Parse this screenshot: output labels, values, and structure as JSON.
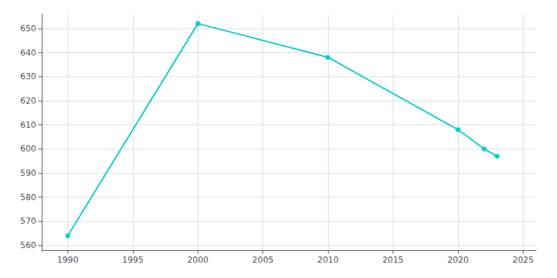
{
  "chart_data": {
    "type": "line",
    "x": [
      1990,
      2000,
      2010,
      2020,
      2022,
      2023
    ],
    "values": [
      564,
      652,
      638,
      608,
      600,
      597
    ],
    "color": "#00CED1",
    "marker": "circle",
    "xlim": [
      1988,
      2026
    ],
    "ylim": [
      558,
      656
    ],
    "xticks": [
      1990,
      1995,
      2000,
      2005,
      2010,
      2015,
      2020,
      2025
    ],
    "yticks": [
      560,
      570,
      580,
      590,
      600,
      610,
      620,
      630,
      640,
      650
    ],
    "grid": true
  }
}
